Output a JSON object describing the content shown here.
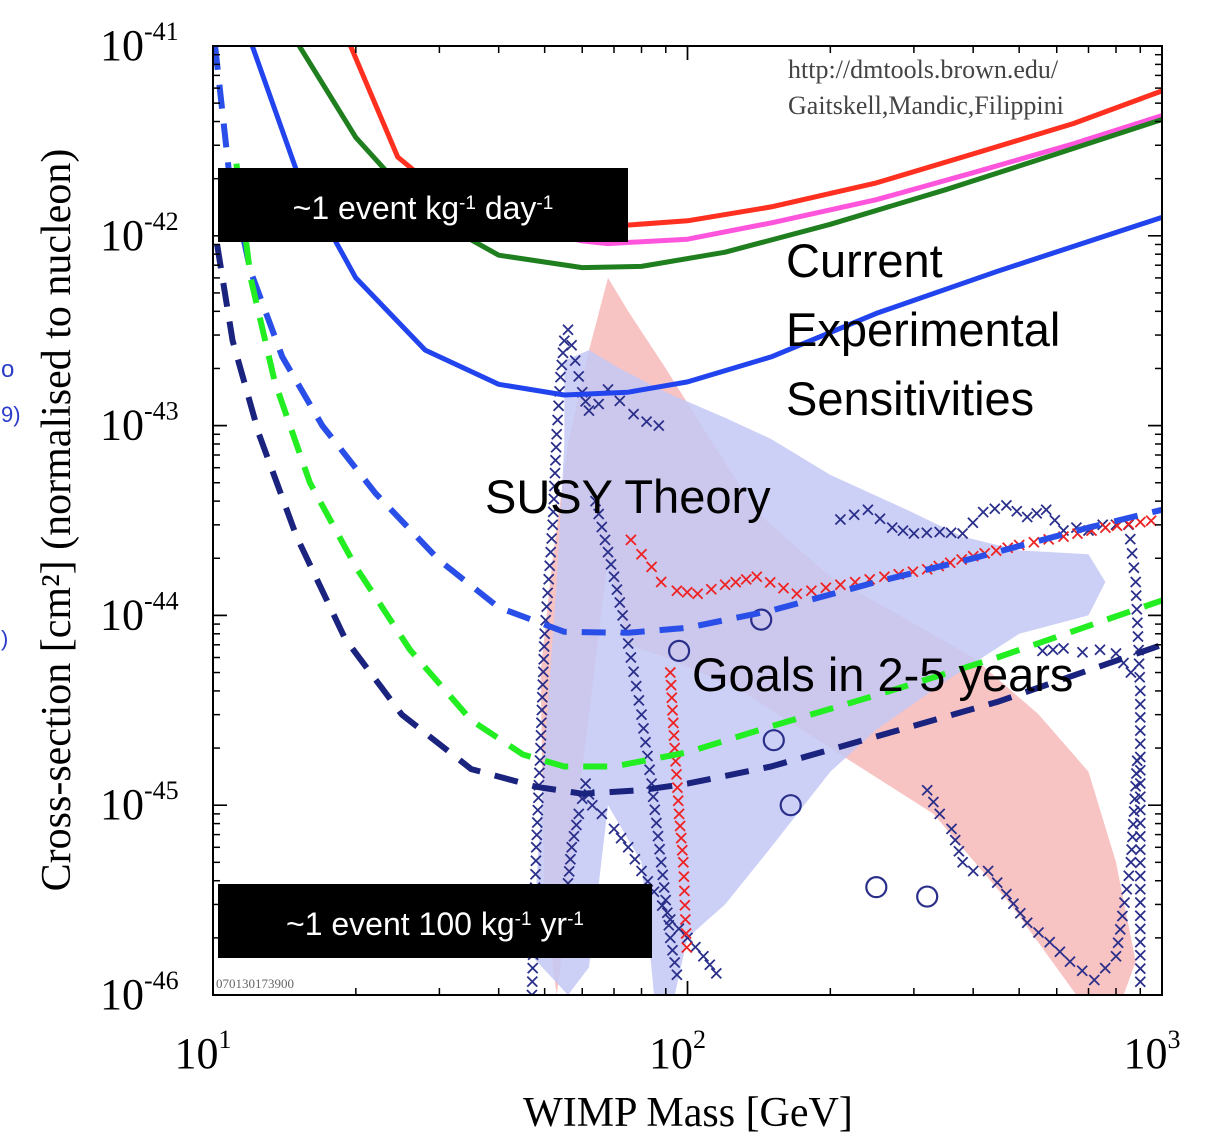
{
  "chart_data": {
    "type": "line",
    "xlabel": "WIMP Mass [GeV]",
    "ylabel": "Cross-section [cm²] (normalised to nucleon)",
    "xscale": "log",
    "yscale": "log",
    "xlim": [
      10,
      1000
    ],
    "ylim": [
      1e-46,
      1e-41
    ],
    "x_ticks": [
      {
        "value": 10,
        "base": "10",
        "exp": "1"
      },
      {
        "value": 100,
        "base": "10",
        "exp": "2"
      },
      {
        "value": 1000,
        "base": "10",
        "exp": "3"
      }
    ],
    "y_ticks": [
      {
        "value": 1e-41,
        "base": "10",
        "exp": "-41"
      },
      {
        "value": 1e-42,
        "base": "10",
        "exp": "-42"
      },
      {
        "value": 1e-43,
        "base": "10",
        "exp": "-43"
      },
      {
        "value": 1e-44,
        "base": "10",
        "exp": "-44"
      },
      {
        "value": 1e-45,
        "base": "10",
        "exp": "-45"
      },
      {
        "value": 1e-46,
        "base": "10",
        "exp": "-46"
      }
    ],
    "credit_lines": [
      "http://dmtools.brown.edu/",
      "Gaitskell,Mandic,Filippini"
    ],
    "plot_id": "070130173900",
    "annotations": {
      "current": [
        "Current",
        "Experimental",
        "Sensitivities"
      ],
      "susy": "SUSY Theory",
      "goals": "Goals in 2-5 years"
    },
    "rate_boxes": [
      {
        "parts": [
          {
            "t": "~1 event kg"
          },
          {
            "t": "-1",
            "sup": true
          },
          {
            "t": " day"
          },
          {
            "t": "-1",
            "sup": true
          }
        ]
      },
      {
        "parts": [
          {
            "t": "~1 event 100 kg"
          },
          {
            "t": "-1",
            "sup": true
          },
          {
            "t": " yr"
          },
          {
            "t": "-1",
            "sup": true
          }
        ]
      }
    ],
    "left_cutoff_text": [
      "o",
      "9)",
      ")"
    ],
    "colors": {
      "red": "#ff3020",
      "magenta": "#ff55dd",
      "green": "#1f7f1f",
      "blue": "#2244ee",
      "dash_blue": "#2a4fe8",
      "dash_green": "#22ee22",
      "dash_navy": "#1a237e",
      "theory_red": "#f7b8b8",
      "theory_blue": "#c4c8f4",
      "cross_navy": "#2a2f8a",
      "cross_red": "#ee2222"
    },
    "series": [
      {
        "style": "solid",
        "color": "red",
        "x": [
          19.5,
          24.5,
          32,
          45,
          68,
          100,
          150,
          250,
          400,
          650,
          1000
        ],
        "y": [
          1e-41,
          2.6e-42,
          1.5e-42,
          1.15e-42,
          1.12e-42,
          1.2e-42,
          1.42e-42,
          1.9e-42,
          2.7e-42,
          3.9e-42,
          5.8e-42
        ]
      },
      {
        "style": "solid",
        "color": "magenta",
        "x": [
          40,
          50,
          60,
          68,
          100,
          150,
          250,
          400,
          650,
          1000
        ],
        "y": [
          1.3e-42,
          1.04e-42,
          9.4e-43,
          9.1e-43,
          9.6e-43,
          1.17e-42,
          1.55e-42,
          2.15e-42,
          3.05e-42,
          4.3e-42
        ]
      },
      {
        "style": "solid",
        "color": "green",
        "x": [
          15.2,
          20,
          28,
          40,
          60,
          80,
          120,
          200,
          350,
          600,
          1000
        ],
        "y": [
          1e-41,
          3.3e-42,
          1.3e-42,
          7.9e-43,
          6.8e-43,
          6.9e-43,
          8.2e-43,
          1.15e-42,
          1.75e-42,
          2.7e-42,
          4.1e-42
        ]
      },
      {
        "style": "solid",
        "color": "blue",
        "x": [
          12.1,
          15,
          20,
          28,
          40,
          55,
          75,
          100,
          150,
          250,
          450,
          1000
        ],
        "y": [
          1e-41,
          2.2e-42,
          6e-43,
          2.5e-43,
          1.65e-43,
          1.45e-43,
          1.5e-43,
          1.7e-43,
          2.3e-43,
          3.9e-43,
          6.5e-43,
          1.25e-42
        ]
      },
      {
        "style": "dashed",
        "color": "dash_blue",
        "x": [
          10.1,
          10.8,
          12,
          14,
          17,
          22,
          30,
          40,
          55,
          75,
          100,
          150,
          250,
          400,
          700,
          1000
        ],
        "y": [
          1e-41,
          2.2e-42,
          6.5e-43,
          2.3e-43,
          1e-43,
          4.4e-44,
          1.95e-44,
          1.1e-44,
          8.2e-45,
          8.1e-45,
          8.6e-45,
          1.06e-44,
          1.5e-44,
          2e-44,
          2.9e-44,
          3.6e-44
        ]
      },
      {
        "style": "dashed",
        "color": "dash_green",
        "x": [
          11.2,
          12,
          13.5,
          16,
          20,
          26,
          35,
          45,
          55,
          70,
          100,
          150,
          250,
          450,
          1000
        ],
        "y": [
          2.4e-42,
          6e-43,
          1.7e-43,
          5e-44,
          1.8e-44,
          6.6e-45,
          2.8e-45,
          1.85e-45,
          1.6e-45,
          1.6e-45,
          1.9e-45,
          2.6e-45,
          3.8e-45,
          6e-45,
          1.2e-44
        ]
      },
      {
        "style": "dashed",
        "color": "dash_navy",
        "x": [
          10.2,
          11,
          12.5,
          15,
          19,
          25,
          35,
          48,
          60,
          80,
          100,
          150,
          250,
          450,
          1000
        ],
        "y": [
          9e-43,
          2.8e-43,
          9e-44,
          2.6e-44,
          7.5e-45,
          3e-45,
          1.55e-45,
          1.25e-45,
          1.15e-45,
          1.2e-45,
          1.3e-45,
          1.6e-45,
          2.3e-45,
          3.5e-45,
          7e-45
        ]
      }
    ],
    "regions": [
      {
        "color": "theory_red",
        "points": [
          [
            52,
            2e-44
          ],
          [
            56,
            8e-44
          ],
          [
            62,
            2.5e-43
          ],
          [
            68,
            6e-43
          ],
          [
            75,
            4e-43
          ],
          [
            90,
            2e-43
          ],
          [
            110,
            9e-44
          ],
          [
            140,
            3.5e-44
          ],
          [
            200,
            1.6e-44
          ],
          [
            280,
            1e-44
          ],
          [
            400,
            6e-45
          ],
          [
            550,
            3e-45
          ],
          [
            700,
            1.5e-45
          ],
          [
            800,
            5e-46
          ],
          [
            880,
            1.5e-46
          ],
          [
            830,
            1e-46
          ],
          [
            660,
            1e-46
          ],
          [
            480,
            3e-46
          ],
          [
            330,
            9e-46
          ],
          [
            200,
            2e-45
          ],
          [
            130,
            4e-45
          ],
          [
            90,
            6e-45
          ],
          [
            75,
            7e-45
          ],
          [
            68,
            2e-44
          ],
          [
            62,
            3e-45
          ],
          [
            58,
            8e-46
          ],
          [
            55,
            2e-46
          ],
          [
            53,
            1e-46
          ],
          [
            50,
            3e-46
          ],
          [
            49,
            5e-45
          ]
        ]
      },
      {
        "color": "theory_blue",
        "points": [
          [
            55,
            2.2e-43
          ],
          [
            62,
            2.5e-43
          ],
          [
            72,
            2e-43
          ],
          [
            90,
            1.5e-43
          ],
          [
            120,
            1.1e-43
          ],
          [
            150,
            8.5e-44
          ],
          [
            200,
            5.5e-44
          ],
          [
            290,
            3.6e-44
          ],
          [
            380,
            2.6e-44
          ],
          [
            500,
            2.2e-44
          ],
          [
            700,
            2.1e-44
          ],
          [
            760,
            1.5e-44
          ],
          [
            700,
            1e-44
          ],
          [
            500,
            8e-45
          ],
          [
            350,
            4.5e-45
          ],
          [
            250,
            2.5e-45
          ],
          [
            200,
            1.5e-45
          ],
          [
            150,
            6e-46
          ],
          [
            120,
            3e-46
          ],
          [
            100,
            2e-46
          ],
          [
            94,
            1e-46
          ],
          [
            85,
            1e-46
          ],
          [
            80,
            5e-46
          ],
          [
            68,
            1e-45
          ],
          [
            62,
            1.4e-46
          ],
          [
            56,
            1e-46
          ],
          [
            47,
            1.6e-46
          ],
          [
            50,
            2e-45
          ],
          [
            53,
            1.5e-44
          ],
          [
            55,
            8e-44
          ]
        ]
      }
    ],
    "cross_tracks": [
      {
        "color": "cross_navy",
        "x": [
          47,
          48,
          49,
          50,
          52,
          53,
          54,
          55,
          56,
          58,
          60,
          62,
          65,
          68,
          72,
          77,
          82,
          87,
          92
        ],
        "y": [
          1e-46,
          6e-46,
          2e-45,
          8e-45,
          3e-44,
          9e-44,
          1.8e-43,
          2.8e-43,
          3.2e-43,
          2.2e-43,
          1.5e-43,
          1.2e-43,
          1.3e-43,
          1.55e-43,
          1.35e-43,
          1.15e-43,
          1.05e-43,
          1e-43,
          9.5e-44
        ]
      },
      {
        "color": "cross_navy",
        "x": [
          55,
          57,
          59,
          61,
          63,
          66,
          70,
          75,
          80,
          85,
          92,
          100,
          108,
          115,
          122
        ],
        "y": [
          2.5e-46,
          6e-46,
          9e-46,
          1.3e-45,
          1e-45,
          9e-46,
          7.5e-46,
          6e-46,
          4.5e-46,
          3.5e-46,
          2.5e-46,
          2e-46,
          1.6e-46,
          1.3e-46,
          1.1e-46
        ]
      },
      {
        "color": "cross_navy",
        "x": [
          64,
          67,
          70,
          73,
          76,
          80,
          84,
          88,
          92,
          96
        ],
        "y": [
          4e-44,
          2.5e-44,
          1.6e-44,
          1e-44,
          6e-45,
          3e-45,
          1.3e-45,
          5e-46,
          2e-46,
          1.1e-46
        ]
      },
      {
        "color": "cross_navy",
        "x": [
          210,
          240,
          270,
          300,
          340,
          380,
          420,
          470,
          520,
          570,
          620,
          660,
          700,
          750,
          800,
          850,
          880,
          900,
          900
        ],
        "y": [
          3.2e-44,
          3.6e-44,
          2.9e-44,
          2.7e-44,
          2.75e-44,
          2.7e-44,
          3.5e-44,
          3.8e-44,
          3.3e-44,
          3.6e-44,
          2.8e-44,
          2.9e-44,
          2.8e-44,
          3e-44,
          3e-44,
          3e-44,
          1.5e-44,
          4e-45,
          1e-46
        ]
      },
      {
        "color": "cross_navy",
        "x": [
          320,
          340,
          360,
          380,
          400,
          430,
          470,
          520,
          580,
          640,
          720,
          800,
          860,
          890
        ],
        "y": [
          1.2e-45,
          9e-46,
          7.5e-46,
          5e-46,
          4.5e-46,
          4.5e-46,
          3.4e-46,
          2.4e-46,
          1.9e-46,
          1.5e-46,
          1.2e-46,
          1.6e-46,
          5e-46,
          2e-45
        ]
      },
      {
        "color": "cross_navy",
        "x": [
          560,
          620,
          680,
          740,
          800,
          860,
          880
        ],
        "y": [
          6.5e-45,
          6.7e-45,
          6.4e-45,
          6.6e-45,
          6.3e-45,
          5e-45,
          4e-45
        ]
      },
      {
        "color": "cross_red",
        "x": [
          76,
          80,
          84,
          88,
          95,
          105,
          120,
          140,
          170,
          210,
          260,
          320,
          400,
          500,
          620,
          760,
          900,
          1000
        ],
        "y": [
          2.5e-44,
          2.1e-44,
          1.8e-44,
          1.5e-44,
          1.35e-44,
          1.3e-44,
          1.45e-44,
          1.6e-44,
          1.3e-44,
          1.45e-44,
          1.6e-44,
          1.75e-44,
          2.05e-44,
          2.35e-44,
          2.6e-44,
          2.9e-44,
          3.1e-44,
          3.2e-44
        ]
      },
      {
        "color": "cross_red",
        "x": [
          92,
          94,
          96,
          98,
          99,
          100
        ],
        "y": [
          5e-45,
          2e-45,
          9e-46,
          5e-46,
          2.5e-46,
          1.5e-46
        ]
      }
    ],
    "circles": [
      {
        "x": 96,
        "y": 6.5e-45
      },
      {
        "x": 143,
        "y": 9.5e-45
      },
      {
        "x": 152,
        "y": 2.2e-45
      },
      {
        "x": 165,
        "y": 1e-45
      },
      {
        "x": 250,
        "y": 3.7e-46
      },
      {
        "x": 320,
        "y": 3.3e-46
      }
    ]
  }
}
